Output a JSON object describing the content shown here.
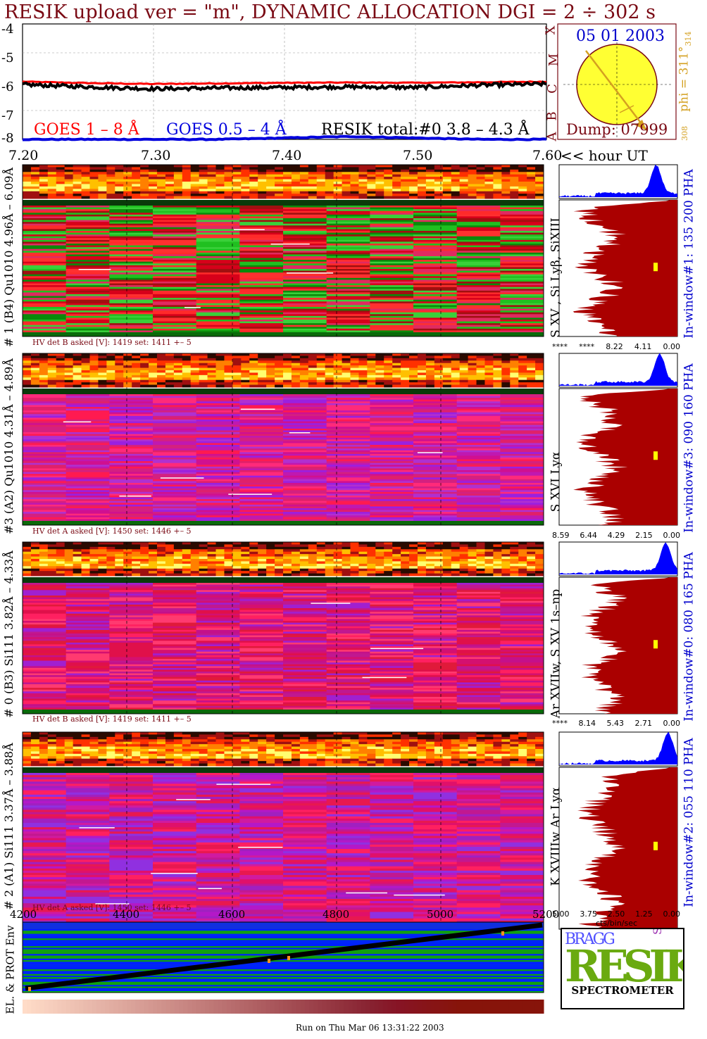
{
  "header": {
    "title": "RESIK upload ver = \"m\", DYNAMIC ALLOCATION  DGI =   2 ÷ 302 s",
    "footer": "Run on Thu Mar 06 13:31:22 2003"
  },
  "colors": {
    "title": "#7a0a14",
    "goes_long": "#ff0000",
    "goes_short": "#0000dd",
    "resik": "#000000",
    "histogram": "#aa0000",
    "phaspec": "#0000ff",
    "sun": "#ffff33"
  },
  "lightcurve": {
    "y_ticks": [
      "-4",
      "-5",
      "-6",
      "-7",
      "-8"
    ],
    "letters": [
      "X",
      "M",
      "C",
      "B",
      "A"
    ],
    "legend_goes_long": "GOES 1 – 8 Å",
    "legend_goes_short": "GOES 0.5 – 4 Å",
    "legend_resik": "RESIK total:#0  3.8 – 4.3 Å"
  },
  "chart_data": {
    "type": "line",
    "xlabel": "<< hour UT",
    "x_ticks": [
      "7.20",
      "7.30",
      "7.40",
      "7.50",
      "7.60"
    ],
    "xlim": [
      7.2,
      7.6
    ],
    "ylim": [
      -8,
      -4
    ],
    "series": [
      {
        "name": "GOES 1 – 8 Å",
        "x": [
          7.2,
          7.25,
          7.3,
          7.35,
          7.4,
          7.45,
          7.5,
          7.55,
          7.6
        ],
        "values": [
          -6.0,
          -6.05,
          -6.08,
          -6.06,
          -6.04,
          -6.03,
          -6.04,
          -6.02,
          -6.0
        ]
      },
      {
        "name": "GOES 0.5 – 4 Å",
        "x": [
          7.2,
          7.25,
          7.3,
          7.35,
          7.4,
          7.45,
          7.5,
          7.55,
          7.6
        ],
        "values": [
          -8.0,
          -8.0,
          -8.0,
          -8.0,
          -7.95,
          -7.9,
          -7.95,
          -8.0,
          -8.0
        ]
      },
      {
        "name": "RESIK total:#0  3.8 – 4.3 Å",
        "x": [
          7.2,
          7.25,
          7.3,
          7.35,
          7.4,
          7.45,
          7.5,
          7.55,
          7.6
        ],
        "values": [
          -6.1,
          -6.18,
          -6.25,
          -6.22,
          -6.2,
          -6.18,
          -6.2,
          -6.12,
          -6.08
        ]
      }
    ]
  },
  "sun": {
    "date": "05 01 2003",
    "phi": "phi = 311°",
    "phi_sub": "314",
    "phi_low": "308",
    "dump": "Dump: 07999"
  },
  "panels": [
    {
      "left": "# 1 (B4) Qu1010 4.96Å – 6.09Å",
      "line": "S XV , Si Lyβ, SiXIII",
      "window": "In-window#1:  135 200 PHA",
      "hv": "HV det B asked [V]:  1419 set:  1411  +–    5",
      "scale": [
        "****",
        "****",
        "8.22",
        "4.11",
        "0.00"
      ]
    },
    {
      "left": "#3 (A2) Qu1010  4.31Å – 4.89Å",
      "line": "S XVI Lyα",
      "window": "In-window#3:  090 160 PHA",
      "hv": "HV det A asked [V]:  1450 set:  1446  +–    5",
      "scale": [
        "8.59",
        "6.44",
        "4.29",
        "2.15",
        "0.00"
      ]
    },
    {
      "left": "# 0 (B3) Si111  3.82Å – 4.33Å",
      "line": "Ar XVIIw, S XV 1s–np",
      "window": "In-window#0:  080 165 PHA",
      "hv": "HV det B asked [V]:  1419 set:  1411  +–    5",
      "scale": [
        "****",
        "8.14",
        "5.43",
        "2.71",
        "0.00"
      ]
    },
    {
      "left": "# 2 (A1) Si111  3.37Å – 3.88Å",
      "line": "K XVIIIw  Ar Lyα",
      "window": "In-window#2:  055 110 PHA",
      "hv": "HV det A asked [V]:  1450 set:  1446  +–    5",
      "scale": [
        "5.00",
        "3.75",
        "2.50",
        "1.25",
        "0.00"
      ]
    }
  ],
  "scale_unit": "cts/bin/sec",
  "env": {
    "label": "EL. & PROT Env",
    "x_ticks": [
      "4200",
      "4400",
      "4600",
      "4800",
      "5000",
      "5200"
    ]
  },
  "logo": {
    "bragg": "BRAGG",
    "resik": "RESIK",
    "solar": "SOLAR",
    "spectrometer": "SPECTROMETER"
  }
}
